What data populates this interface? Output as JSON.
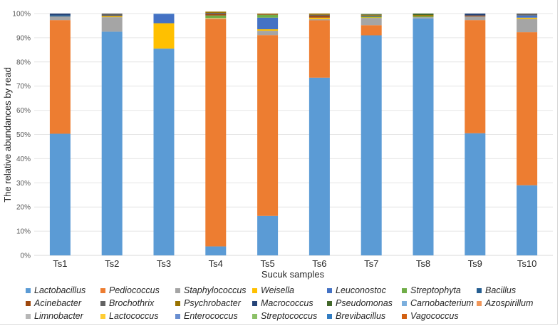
{
  "chart_data": {
    "type": "bar",
    "stacked": true,
    "title": "",
    "xlabel": "Sucuk samples",
    "ylabel": "The relative abundances by read",
    "ylim": [
      0,
      100
    ],
    "y_ticks": [
      "0%",
      "10%",
      "20%",
      "30%",
      "40%",
      "50%",
      "60%",
      "70%",
      "80%",
      "90%",
      "100%"
    ],
    "grid": true,
    "legend_position": "bottom",
    "categories": [
      "Ts1",
      "Ts2",
      "Ts3",
      "Ts4",
      "Ts5",
      "Ts6",
      "Ts7",
      "Ts8",
      "Ts9",
      "Ts10"
    ],
    "series": [
      {
        "name": "Lactobacillus",
        "color": "#5b9bd5",
        "values": [
          50.3,
          92.5,
          85.5,
          3.7,
          16.3,
          73.5,
          91.0,
          98.0,
          50.5,
          29.0
        ]
      },
      {
        "name": "Pediococcus",
        "color": "#ed7d31",
        "values": [
          47.0,
          0.0,
          0.0,
          94.0,
          74.8,
          23.7,
          4.2,
          0.0,
          46.8,
          63.3
        ]
      },
      {
        "name": "Staphylococcus",
        "color": "#a5a5a5",
        "values": [
          1.5,
          6.0,
          0.0,
          0.3,
          1.8,
          0.5,
          3.0,
          0.5,
          1.5,
          5.5
        ]
      },
      {
        "name": "Weisella",
        "color": "#ffc000",
        "values": [
          0.0,
          0.4,
          10.5,
          0.2,
          0.6,
          0.6,
          0.2,
          0.0,
          0.0,
          0.5
        ]
      },
      {
        "name": "Leuconostoc",
        "color": "#4472c4",
        "values": [
          0.0,
          0.0,
          3.8,
          0.0,
          4.8,
          0.0,
          0.0,
          0.0,
          0.0,
          0.9
        ]
      },
      {
        "name": "Streptophyta",
        "color": "#70ad47",
        "values": [
          0.0,
          0.0,
          0.0,
          1.0,
          1.2,
          0.0,
          0.3,
          0.4,
          0.0,
          0.0
        ]
      },
      {
        "name": "Bacillus",
        "color": "#255e91",
        "values": [
          0.5,
          0.0,
          0.0,
          0.0,
          0.0,
          0.0,
          0.3,
          0.0,
          0.0,
          0.0
        ]
      },
      {
        "name": "Acinebacter",
        "color": "#9e480e",
        "values": [
          0.0,
          0.0,
          0.0,
          0.6,
          0.3,
          0.8,
          0.2,
          0.0,
          0.4,
          0.0
        ]
      },
      {
        "name": "Brochothrix",
        "color": "#636363",
        "values": [
          0.0,
          1.1,
          0.0,
          0.5,
          0.0,
          0.4,
          0.0,
          0.0,
          0.0,
          0.8
        ]
      },
      {
        "name": "Psychrobacter",
        "color": "#997300",
        "values": [
          0.0,
          0.0,
          0.0,
          0.5,
          0.2,
          0.5,
          0.3,
          0.5,
          0.0,
          0.0
        ]
      },
      {
        "name": "Macrococcus",
        "color": "#264478",
        "values": [
          0.7,
          0.0,
          0.0,
          0.0,
          0.0,
          0.0,
          0.0,
          0.0,
          0.8,
          0.0
        ]
      },
      {
        "name": "Pseudomonas",
        "color": "#43682b",
        "values": [
          0.0,
          0.0,
          0.0,
          0.0,
          0.0,
          0.0,
          0.3,
          0.6,
          0.0,
          0.0
        ]
      },
      {
        "name": "Carnobacterium",
        "color": "#7cafdd",
        "values": [
          0.0,
          0.0,
          0.2,
          0.0,
          0.0,
          0.0,
          0.0,
          0.0,
          0.0,
          0.0
        ]
      },
      {
        "name": "Azospirillum",
        "color": "#f1975a",
        "values": [
          0.0,
          0.0,
          0.0,
          0.0,
          0.0,
          0.0,
          0.0,
          0.0,
          0.0,
          0.0
        ]
      },
      {
        "name": "Limnobacter",
        "color": "#b7b7b7",
        "values": [
          0.0,
          0.0,
          0.0,
          0.0,
          0.0,
          0.0,
          0.0,
          0.0,
          0.0,
          0.0
        ]
      },
      {
        "name": "Lactococcus",
        "color": "#ffcd33",
        "values": [
          0.0,
          0.0,
          0.0,
          0.0,
          0.0,
          0.0,
          0.0,
          0.0,
          0.0,
          0.0
        ]
      },
      {
        "name": "Enterococcus",
        "color": "#698ed0",
        "values": [
          0.0,
          0.0,
          0.0,
          0.0,
          0.0,
          0.0,
          0.0,
          0.0,
          0.0,
          0.0
        ]
      },
      {
        "name": "Streptococcus",
        "color": "#8cc168",
        "values": [
          0.0,
          0.0,
          0.0,
          0.0,
          0.0,
          0.0,
          0.0,
          0.0,
          0.0,
          0.0
        ]
      },
      {
        "name": "Brevibacillus",
        "color": "#327dc2",
        "values": [
          0.0,
          0.0,
          0.0,
          0.0,
          0.0,
          0.0,
          0.0,
          0.0,
          0.0,
          0.0
        ]
      },
      {
        "name": "Vagococcus",
        "color": "#d26012",
        "values": [
          0.0,
          0.0,
          0.0,
          0.0,
          0.0,
          0.0,
          0.0,
          0.0,
          0.0,
          0.0
        ]
      }
    ]
  }
}
